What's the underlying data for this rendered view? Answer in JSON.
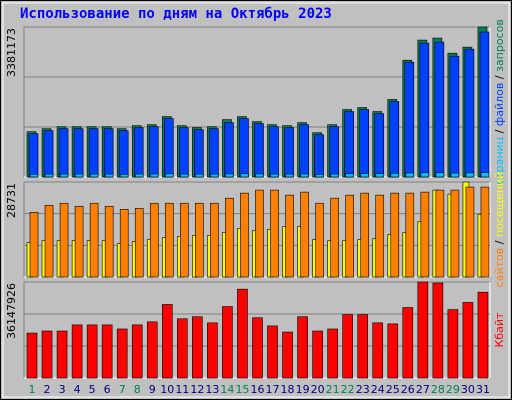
{
  "chart_data": [
    {
      "type": "bar",
      "title": "Использование по дням на Октябрь 2023",
      "ylim": [
        0,
        3381173
      ],
      "series": [
        {
          "name": "запросов",
          "color": "#00805c",
          "values": [
            1021185,
            1089264,
            1134650,
            1134650,
            1134650,
            1134650,
            1089264,
            1157343,
            1180036,
            1361580,
            1157343,
            1111957,
            1134650,
            1293501,
            1361580,
            1248115,
            1180036,
            1157343,
            1225422,
            998492,
            1180036,
            1520431,
            1565817,
            1475045,
            1747361,
            2632388,
            3086248,
            3131634,
            2791239,
            2927397,
            3381173
          ]
        },
        {
          "name": "файлов",
          "color": "#0040ff",
          "values": [
            975799,
            1043878,
            1089264,
            1089264,
            1089264,
            1089264,
            1043878,
            1111957,
            1134650,
            1316194,
            1111957,
            1066571,
            1089264,
            1225422,
            1316194,
            1202729,
            1134650,
            1111957,
            1180036,
            953106,
            1134650,
            1475045,
            1520431,
            1429659,
            1701975,
            2587002,
            3018169,
            3040862,
            2723160,
            2882011,
            3267792
          ]
        },
        {
          "name": "страниц",
          "color": "#00c0ff",
          "values": [
            62000,
            64000,
            66000,
            66000,
            65000,
            64000,
            61000,
            66000,
            67000,
            72000,
            66000,
            64000,
            65000,
            70000,
            73000,
            69000,
            66000,
            65000,
            68000,
            60000,
            66000,
            76000,
            78000,
            74000,
            82000,
            90000,
            95000,
            96000,
            88000,
            92000,
            99000
          ]
        }
      ]
    },
    {
      "type": "bar",
      "ylim": [
        0,
        28731
      ],
      "series": [
        {
          "name": "посещений",
          "color": "#ffff00",
          "values": [
            10390,
            11002,
            11002,
            11002,
            11002,
            11002,
            10085,
            10696,
            11307,
            11918,
            12224,
            12530,
            12530,
            13446,
            14669,
            14058,
            14363,
            15280,
            15280,
            11307,
            11002,
            11002,
            11307,
            11612,
            12835,
            13446,
            16808,
            26282,
            25059,
            28731,
            18947
          ]
        },
        {
          "name": "сайтов",
          "color": "#ff8000",
          "values": [
            19558,
            21698,
            22309,
            21392,
            22309,
            21392,
            20475,
            20781,
            22309,
            22309,
            22309,
            22309,
            22309,
            23837,
            25365,
            26282,
            26282,
            24754,
            25670,
            22309,
            23837,
            24754,
            25365,
            24754,
            25365,
            25365,
            25670,
            26282,
            26282,
            27198,
            27198
          ]
        }
      ]
    },
    {
      "type": "bar",
      "ylim": [
        0,
        36147926
      ],
      "categories": [
        "1",
        "2",
        "3",
        "4",
        "5",
        "6",
        "7",
        "8",
        "9",
        "10",
        "11",
        "12",
        "13",
        "14",
        "15",
        "16",
        "17",
        "18",
        "19",
        "20",
        "21",
        "22",
        "23",
        "24",
        "25",
        "26",
        "27",
        "28",
        "29",
        "30",
        "31"
      ],
      "category_colors": [
        "#00805c",
        "#000080",
        "#000080",
        "#000080",
        "#000080",
        "#000080",
        "#00805c",
        "#00805c",
        "#000080",
        "#000080",
        "#000080",
        "#000080",
        "#000080",
        "#00805c",
        "#00805c",
        "#000080",
        "#000080",
        "#000080",
        "#000080",
        "#000080",
        "#00805c",
        "#00805c",
        "#000080",
        "#000080",
        "#000080",
        "#000080",
        "#000080",
        "#00805c",
        "#00805c",
        "#000080",
        "#000080"
      ],
      "series": [
        {
          "name": "Кбайт",
          "color": "#ff0000",
          "values": [
            16920288,
            17689392,
            17689392,
            19996704,
            19996704,
            19996704,
            18458496,
            19996704,
            21150360,
            27687744,
            22304016,
            23073120,
            20765808,
            26918640,
            33456024,
            22688568,
            19612152,
            17304840,
            23073120,
            17689392,
            18458496,
            23842224,
            23842224,
            20765808,
            20381256,
            26534088,
            36147926,
            35763336,
            25764984,
            28456848,
            32302368
          ]
        }
      ]
    }
  ],
  "legend_separator": " / "
}
